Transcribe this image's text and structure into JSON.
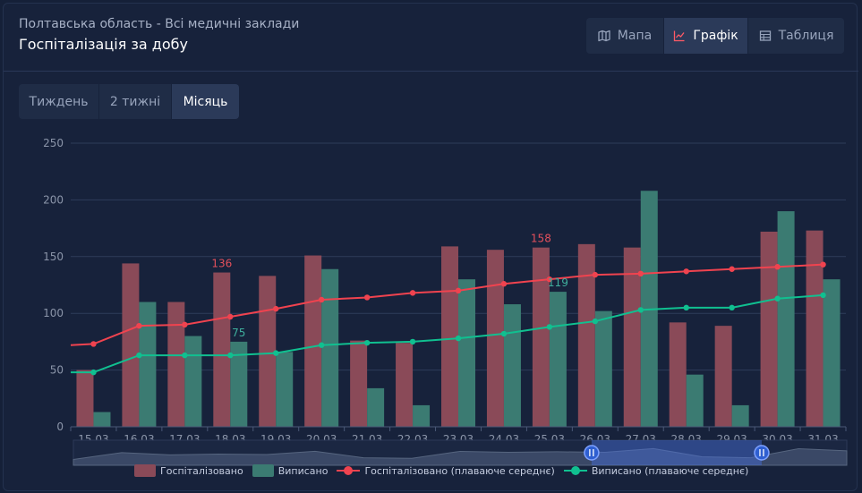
{
  "header": {
    "subtitle": "Полтавська область - Всі медичні заклади",
    "title": "Госпіталізація за добу"
  },
  "view_tabs": {
    "map": "Мапа",
    "chart": "Графік",
    "table": "Таблиця",
    "active": "chart"
  },
  "range_tabs": {
    "week": "Тиждень",
    "two_weeks": "2 тижні",
    "month": "Місяць",
    "active": "month"
  },
  "colors": {
    "hospitalized": "#8a4a58",
    "discharged": "#3b7b72",
    "hospitalized_avg": "#f0434f",
    "discharged_avg": "#10c090",
    "grid": "#2e3c5a",
    "axis_text": "#8b95a9"
  },
  "chart_data": {
    "type": "bar",
    "categories": [
      "15.03",
      "16.03",
      "17.03",
      "18.03",
      "19.03",
      "20.03",
      "21.03",
      "22.03",
      "23.03",
      "24.03",
      "25.03",
      "26.03",
      "27.03",
      "28.03",
      "29.03",
      "30.03",
      "31.03"
    ],
    "ylim": [
      0,
      250
    ],
    "yticks": [
      0,
      50,
      100,
      150,
      200,
      250
    ],
    "grid": true,
    "legend_position": "bottom",
    "series": [
      {
        "name": "Госпіталізовано",
        "kind": "bar",
        "values": [
          50,
          144,
          110,
          136,
          133,
          151,
          76,
          74,
          159,
          156,
          158,
          161,
          158,
          92,
          89,
          172,
          173
        ]
      },
      {
        "name": "Виписано",
        "kind": "bar",
        "values": [
          13,
          110,
          80,
          75,
          66,
          139,
          34,
          19,
          130,
          108,
          119,
          102,
          208,
          46,
          19,
          190,
          130
        ]
      },
      {
        "name": "Госпіталізовано (плаваюче середнє)",
        "kind": "line",
        "values": [
          73,
          89,
          90,
          97,
          104,
          112,
          114,
          118,
          120,
          126,
          130,
          134,
          135,
          137,
          139,
          141,
          143
        ]
      },
      {
        "name": "Виписано (плаваюче середнє)",
        "kind": "line",
        "values": [
          48,
          63,
          63,
          63,
          65,
          72,
          74,
          75,
          78,
          82,
          88,
          93,
          103,
          105,
          105,
          113,
          116
        ]
      }
    ],
    "line_extends_left": {
      "hospitalized_avg": 72,
      "discharged_avg": 48
    },
    "annotations": [
      {
        "series": "Госпіталізовано",
        "category": "18.03",
        "label": "136"
      },
      {
        "series": "Виписано",
        "category": "18.03",
        "label": "75"
      },
      {
        "series": "Госпіталізовано",
        "category": "25.03",
        "label": "158"
      },
      {
        "series": "Виписано",
        "category": "25.03",
        "label": "119"
      }
    ],
    "datazoom": {
      "start_fraction": 0.67,
      "end_fraction": 0.89
    }
  }
}
